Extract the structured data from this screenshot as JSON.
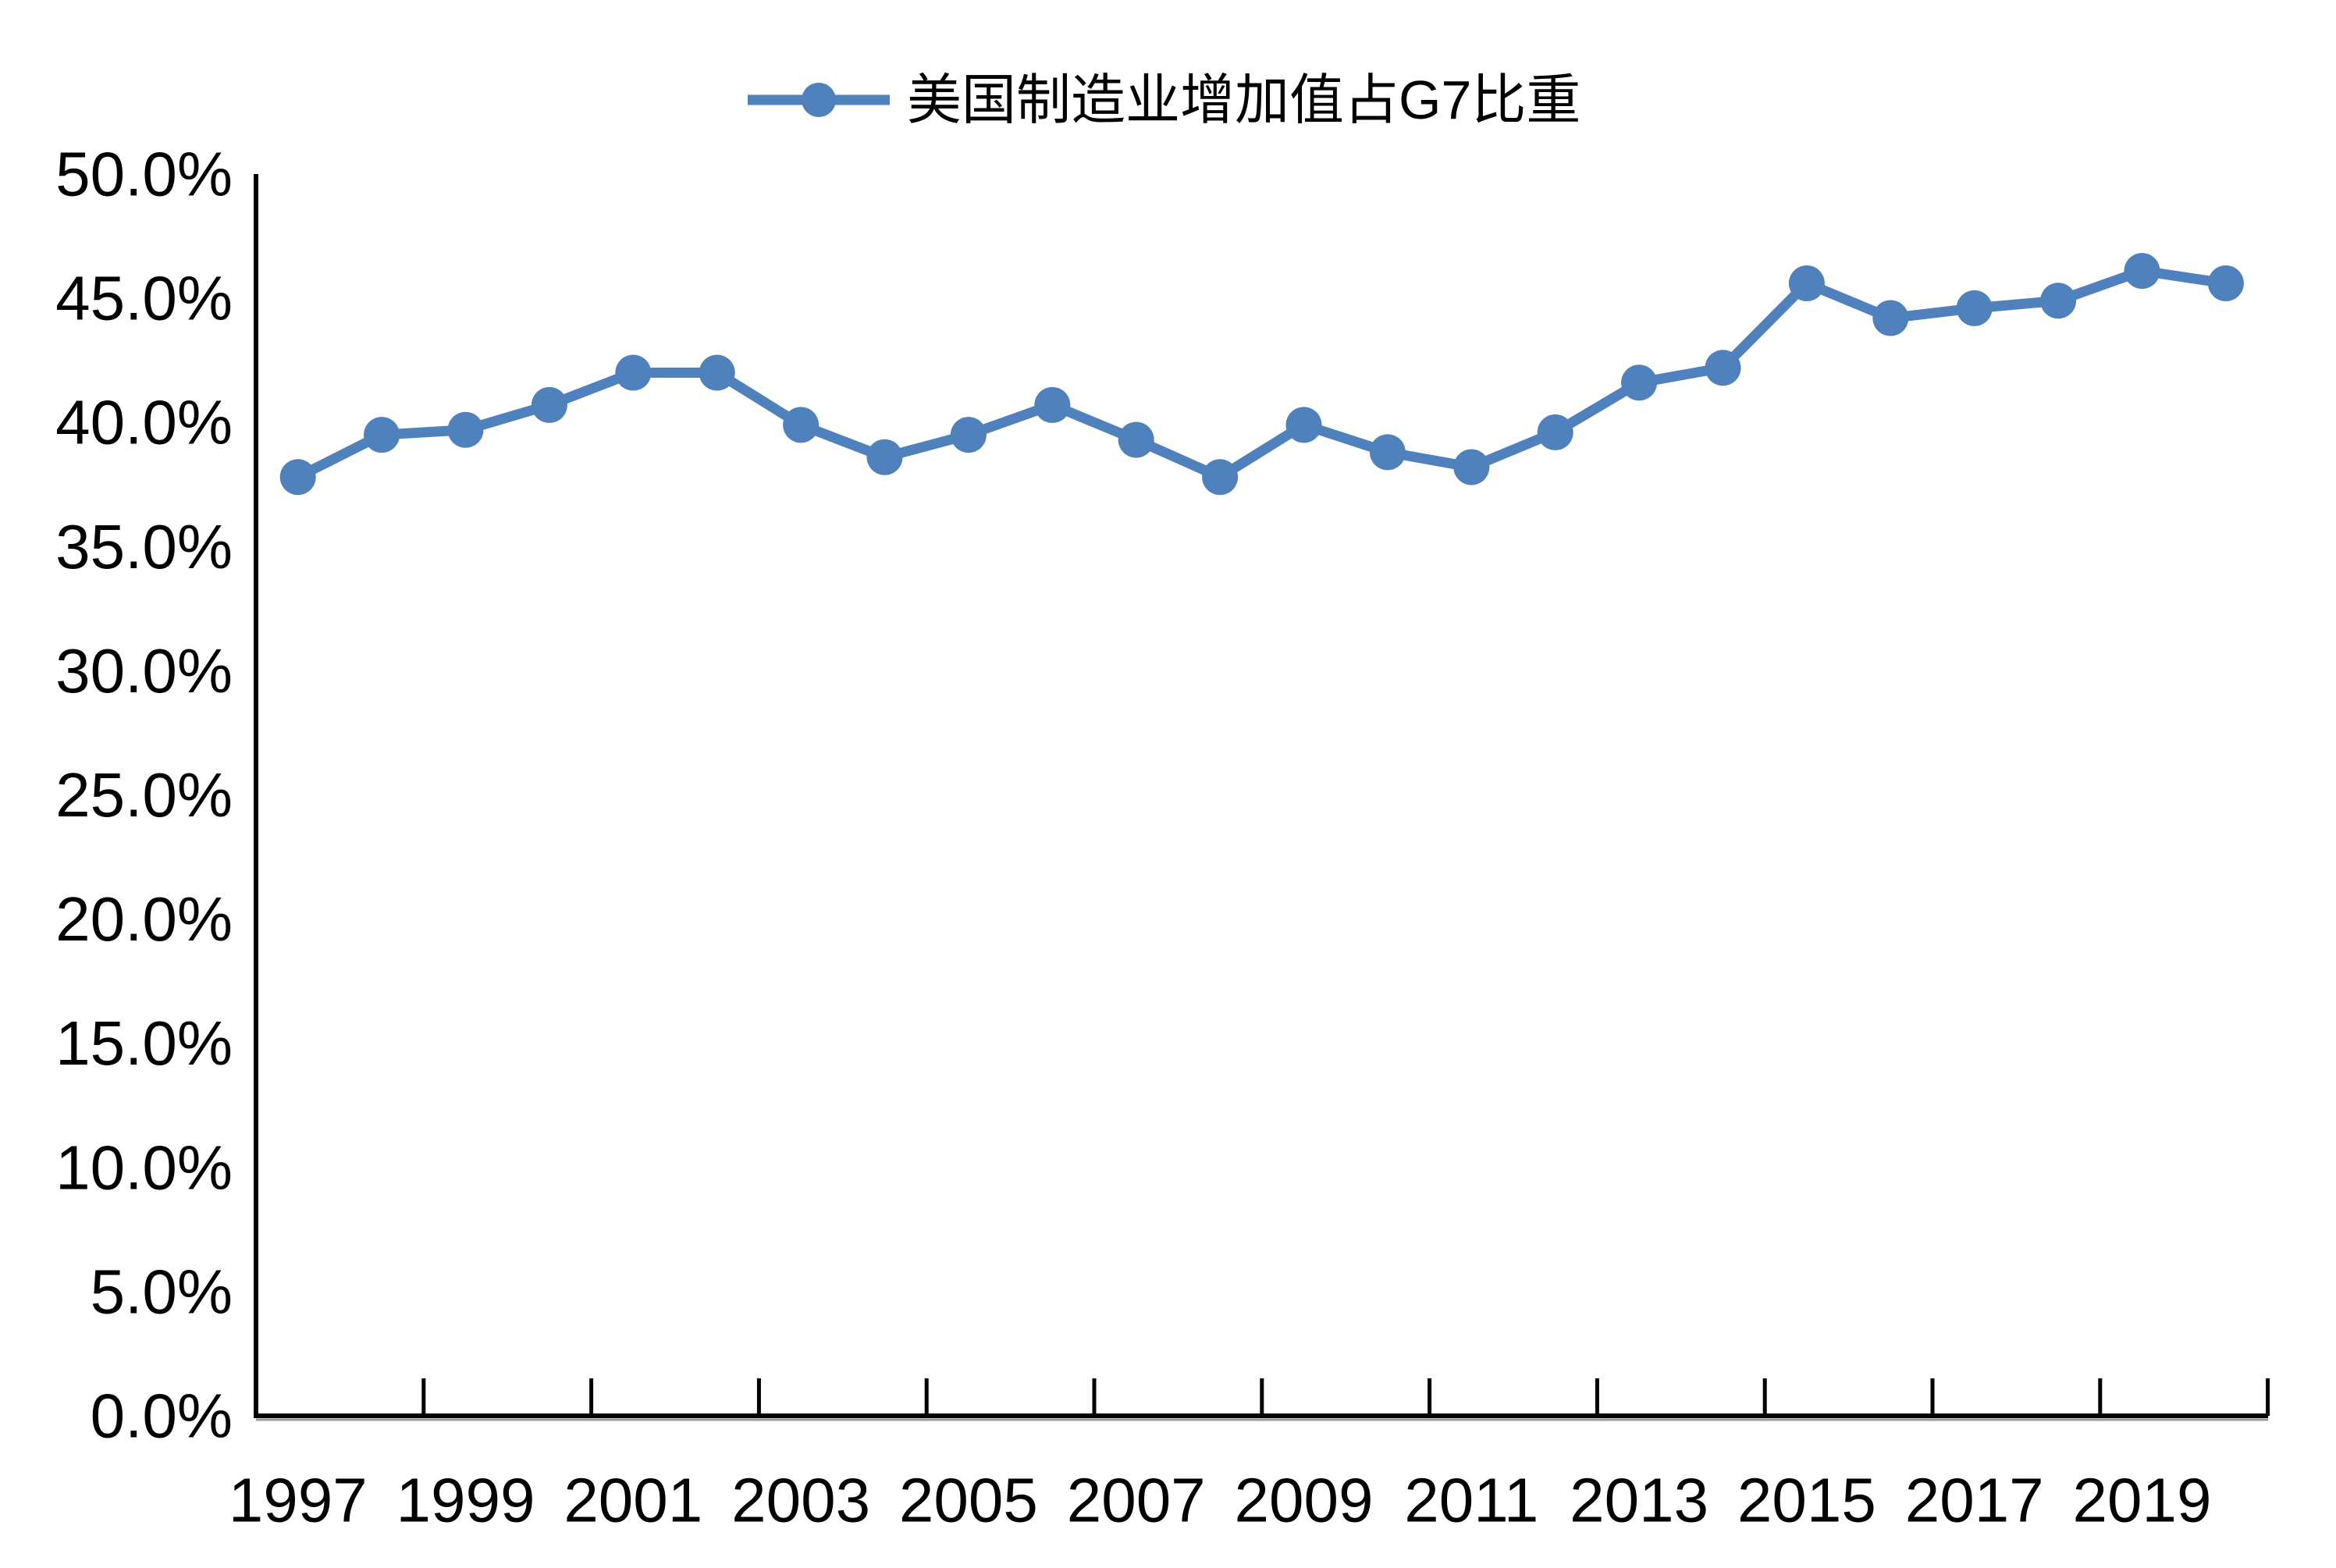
{
  "chart_data": {
    "type": "line",
    "title": "",
    "legend": "美国制造业增加值占G7比重",
    "legend_position": "top-center",
    "x": [
      1997,
      1998,
      1999,
      2000,
      2001,
      2002,
      2003,
      2004,
      2005,
      2006,
      2007,
      2008,
      2009,
      2010,
      2011,
      2012,
      2013,
      2014,
      2015,
      2016,
      2017,
      2018,
      2019,
      2020
    ],
    "series": [
      {
        "name": "美国制造业增加值占G7比重",
        "values": [
          37.8,
          39.5,
          39.7,
          40.7,
          42.0,
          42.0,
          39.9,
          38.6,
          39.5,
          40.7,
          39.3,
          37.8,
          39.9,
          38.8,
          38.2,
          39.6,
          41.6,
          42.2,
          45.6,
          44.2,
          44.6,
          44.9,
          46.1,
          45.6
        ]
      }
    ],
    "x_tick_labels": [
      "1997",
      "1999",
      "2001",
      "2003",
      "2005",
      "2007",
      "2009",
      "2011",
      "2013",
      "2015",
      "2017",
      "2019"
    ],
    "y_tick_labels": [
      "0.0%",
      "5.0%",
      "10.0%",
      "15.0%",
      "20.0%",
      "25.0%",
      "30.0%",
      "35.0%",
      "40.0%",
      "45.0%",
      "50.0%"
    ],
    "ylim": [
      0,
      50
    ],
    "y_tick_step": 5,
    "y_unit": "%",
    "grid": "off",
    "colors": {
      "series": "#4F81BD",
      "axis": "#000000",
      "text": "#000000",
      "background": "#FFFFFF"
    }
  }
}
